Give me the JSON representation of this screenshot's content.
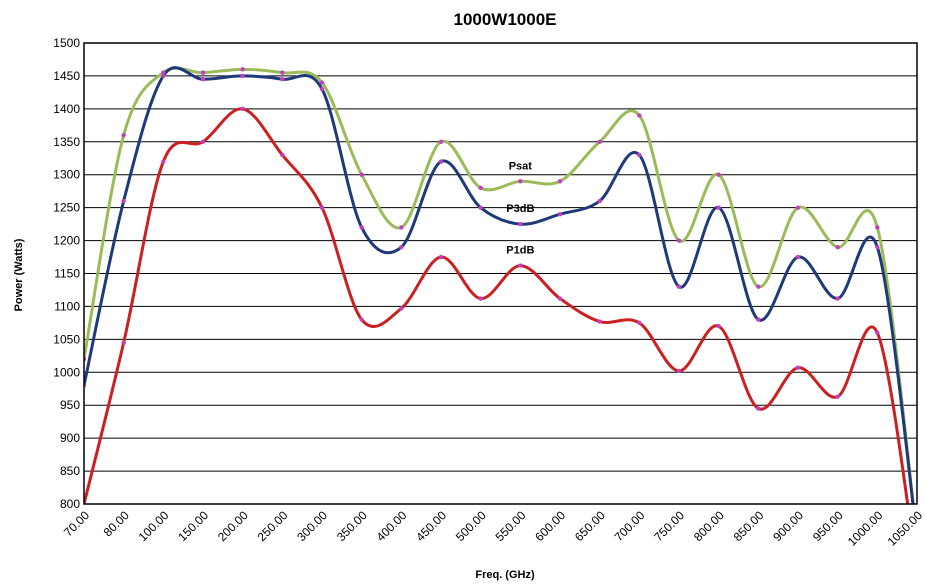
{
  "chart_data": {
    "type": "line",
    "title": "1000W1000E",
    "xlabel": "Freq. (GHz)",
    "ylabel": "Power (Watts)",
    "ylim": [
      800,
      1500
    ],
    "yticks": [
      800,
      850,
      900,
      950,
      1000,
      1050,
      1100,
      1150,
      1200,
      1250,
      1300,
      1350,
      1400,
      1450,
      1500
    ],
    "categories": [
      "70.00",
      "80.00",
      "100.00",
      "150.00",
      "200.00",
      "250.00",
      "300.00",
      "350.00",
      "400.00",
      "450.00",
      "500.00",
      "550.00",
      "600.00",
      "650.00",
      "700.00",
      "750.00",
      "800.00",
      "850.00",
      "900.00",
      "950.00",
      "1000.00",
      "1050.00"
    ],
    "grid": true,
    "series": [
      {
        "name": "Psat",
        "color": "#9bbb59",
        "values": [
          1020,
          1360,
          1455,
          1455,
          1460,
          1455,
          1440,
          1300,
          1220,
          1350,
          1280,
          1290,
          1290,
          1350,
          1390,
          1200,
          1300,
          1130,
          1250,
          1190,
          1220,
          750
        ]
      },
      {
        "name": "P3dB",
        "color": "#1f3a7a",
        "values": [
          980,
          1260,
          1450,
          1445,
          1450,
          1445,
          1430,
          1220,
          1190,
          1320,
          1250,
          1225,
          1240,
          1260,
          1330,
          1130,
          1250,
          1080,
          1175,
          1112,
          1190,
          750
        ]
      },
      {
        "name": "P1dB",
        "color": "#cc1f1f",
        "values": [
          800,
          1045,
          1320,
          1350,
          1400,
          1330,
          1250,
          1080,
          1097,
          1175,
          1112,
          1162,
          1112,
          1077,
          1075,
          1002,
          1070,
          945,
          1007,
          963,
          1060,
          700
        ]
      }
    ],
    "annotations": [
      {
        "text": "Psat",
        "series": 0,
        "index": 11
      },
      {
        "text": "P3dB",
        "series": 1,
        "index": 11
      },
      {
        "text": "P1dB",
        "series": 2,
        "index": 11
      }
    ]
  }
}
